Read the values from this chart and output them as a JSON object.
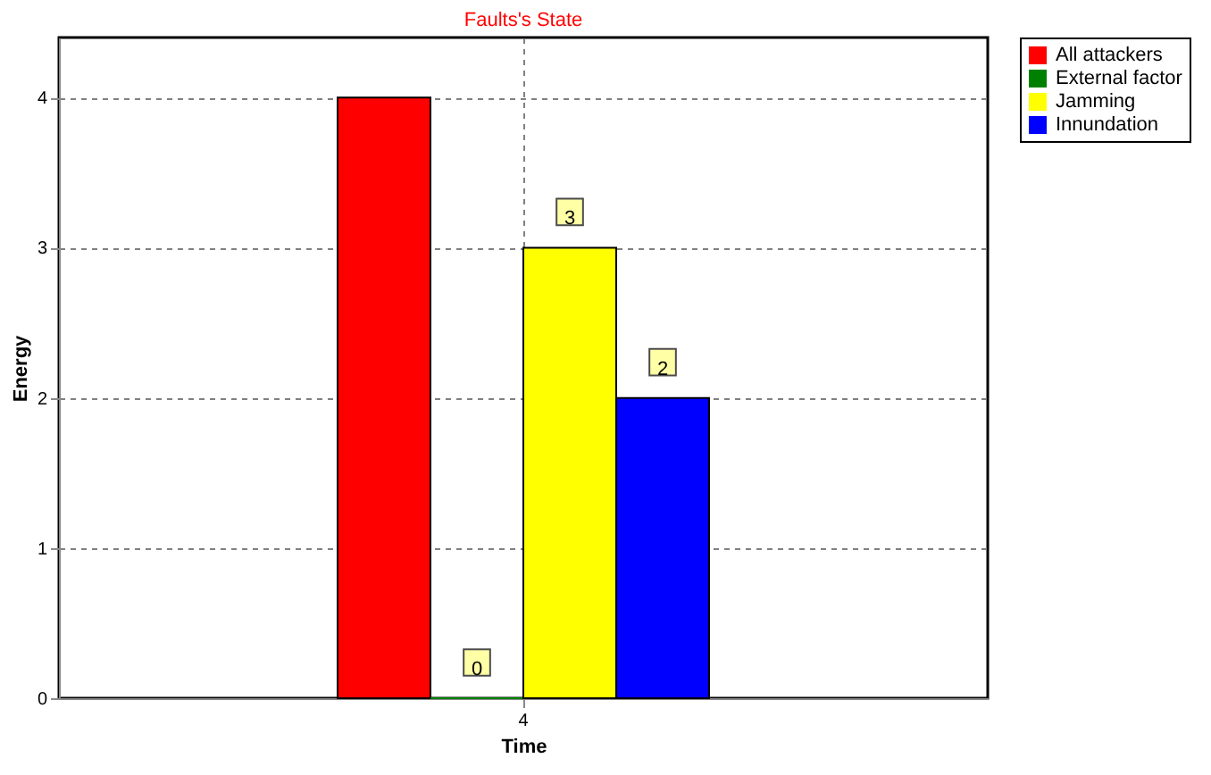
{
  "chart_data": {
    "type": "bar",
    "title": "Faults's State",
    "xlabel": "Time",
    "ylabel": "Energy",
    "categories": [
      "4"
    ],
    "series": [
      {
        "name": "All attackers",
        "color": "#ff0000",
        "values": [
          4
        ],
        "value_labels": [
          null
        ]
      },
      {
        "name": "External factor",
        "color": "#008000",
        "values": [
          0
        ],
        "value_labels": [
          "0"
        ]
      },
      {
        "name": "Jamming",
        "color": "#ffff00",
        "values": [
          3
        ],
        "value_labels": [
          "3"
        ]
      },
      {
        "name": "Innundation",
        "color": "#0000ff",
        "values": [
          2
        ],
        "value_labels": [
          "2"
        ]
      }
    ],
    "ylim": [
      0,
      4.4
    ],
    "yticks": [
      0,
      1,
      2,
      3,
      4
    ],
    "grid": true,
    "legend": "top right"
  }
}
